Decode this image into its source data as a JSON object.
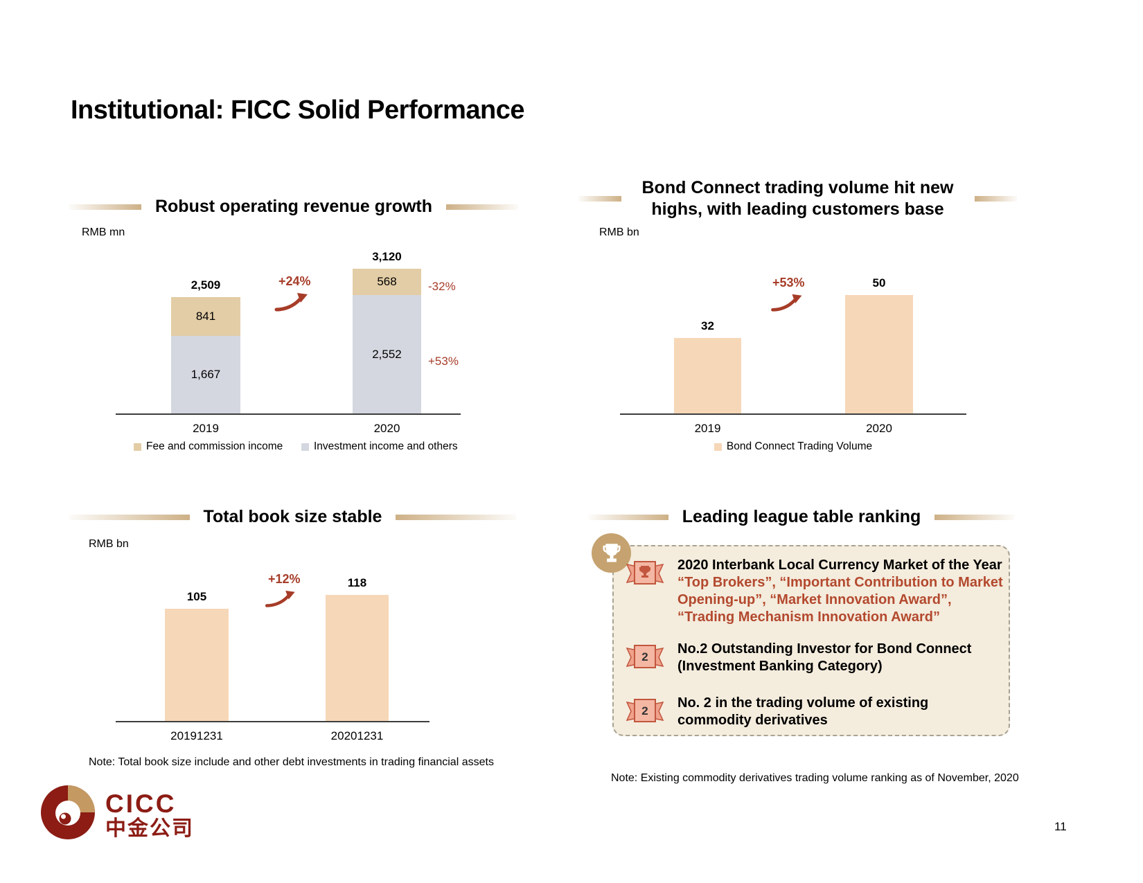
{
  "slide": {
    "title": "Institutional: FICC Solid Performance",
    "page_number": "11"
  },
  "logo": {
    "latin": "CICC",
    "chinese": "中金公司"
  },
  "chart_data": [
    {
      "type": "bar",
      "stacked": true,
      "title": "Robust operating revenue growth",
      "unit": "RMB mn",
      "categories": [
        "2019",
        "2020"
      ],
      "series": [
        {
          "name": "Fee and commission income",
          "values": [
            841,
            568
          ],
          "color": "#e3cda6",
          "change": "-32%"
        },
        {
          "name": "Investment income and others",
          "values": [
            1667,
            2552
          ],
          "color": "#d5d7e0",
          "change": "+53%"
        }
      ],
      "totals": [
        "2,509",
        "3,120"
      ],
      "value_labels": [
        [
          "841",
          "1,667"
        ],
        [
          "568",
          "2,552"
        ]
      ],
      "growth": "+24%",
      "legend_position": "bottom"
    },
    {
      "type": "bar",
      "stacked": false,
      "title": "Bond Connect trading volume hit new highs, with leading customers base",
      "unit": "RMB bn",
      "categories": [
        "2019",
        "2020"
      ],
      "series": [
        {
          "name": "Bond Connect Trading Volume",
          "values": [
            32,
            50
          ],
          "color": "#f6d7b8"
        }
      ],
      "value_labels": [
        "32",
        "50"
      ],
      "growth": "+53%",
      "legend_position": "bottom"
    },
    {
      "type": "bar",
      "stacked": false,
      "title": "Total book size stable",
      "unit": "RMB bn",
      "categories": [
        "20191231",
        "20201231"
      ],
      "series": [
        {
          "name": "Total book size",
          "values": [
            105,
            118
          ],
          "color": "#f6d7b8"
        }
      ],
      "value_labels": [
        "105",
        "118"
      ],
      "growth": "+12%",
      "note": "Note: Total book size include and other debt investments in trading financial assets"
    }
  ],
  "awards": {
    "title": "Leading league table ranking",
    "items": [
      {
        "badge": "trophy",
        "heading": "2020 Interbank Local Currency Market of the Year",
        "detail": "“Top Brokers”, “Important Contribution to Market Opening-up”, “Market Innovation Award”, “Trading Mechanism Innovation Award”"
      },
      {
        "badge": "2",
        "heading": "No.2 Outstanding Investor for Bond Connect (Investment Banking Category)",
        "detail": ""
      },
      {
        "badge": "2",
        "heading": "No. 2 in the trading volume of existing commodity derivatives",
        "detail": ""
      }
    ],
    "note": "Note: Existing commodity derivatives trading volume ranking as of November, 2020"
  }
}
